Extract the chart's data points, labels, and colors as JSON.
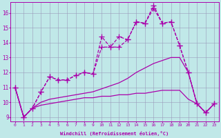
{
  "background_color": "#c0e8e8",
  "grid_color": "#9999bb",
  "line_color": "#aa00aa",
  "markersize": 2.5,
  "linewidth": 0.9,
  "xlabel": "Windchill (Refroidissement éolien,°C)",
  "xlim": [
    -0.5,
    23.5
  ],
  "ylim": [
    8.7,
    16.7
  ],
  "yticks": [
    9,
    10,
    11,
    12,
    13,
    14,
    15,
    16
  ],
  "xticks": [
    0,
    1,
    2,
    3,
    4,
    5,
    6,
    7,
    8,
    9,
    10,
    11,
    12,
    13,
    14,
    15,
    16,
    17,
    18,
    19,
    20,
    21,
    22,
    23
  ],
  "series1_x": [
    0,
    1,
    2,
    3,
    4,
    5,
    6,
    7,
    8,
    9,
    10,
    11,
    12,
    13,
    14,
    15,
    16,
    17,
    18,
    19,
    20,
    21,
    22,
    23
  ],
  "series1_y": [
    11.0,
    9.0,
    9.6,
    10.7,
    11.7,
    11.5,
    11.5,
    11.8,
    12.0,
    11.9,
    14.4,
    13.7,
    14.4,
    14.2,
    15.4,
    15.3,
    16.5,
    15.3,
    15.4,
    13.8,
    12.0,
    9.9,
    9.3,
    9.9
  ],
  "series2_x": [
    0,
    1,
    2,
    3,
    4,
    5,
    6,
    7,
    8,
    9,
    10,
    11,
    12,
    13,
    14,
    15,
    16,
    17,
    18,
    19,
    20,
    21,
    22,
    23
  ],
  "series2_y": [
    11.0,
    9.0,
    9.6,
    10.7,
    11.7,
    11.5,
    11.5,
    11.8,
    12.0,
    11.9,
    13.7,
    13.7,
    13.7,
    14.2,
    15.4,
    15.3,
    16.3,
    15.3,
    15.4,
    13.8,
    12.0,
    9.9,
    9.3,
    9.9
  ],
  "series3_x": [
    0,
    1,
    2,
    3,
    4,
    5,
    6,
    7,
    8,
    9,
    10,
    11,
    12,
    13,
    14,
    15,
    16,
    17,
    18,
    19,
    20,
    21,
    22,
    23
  ],
  "series3_y": [
    11.0,
    9.0,
    9.6,
    10.0,
    10.2,
    10.3,
    10.4,
    10.5,
    10.6,
    10.7,
    10.9,
    11.1,
    11.3,
    11.6,
    12.0,
    12.3,
    12.6,
    12.8,
    13.0,
    13.0,
    12.0,
    9.9,
    9.3,
    9.9
  ],
  "series4_x": [
    0,
    1,
    2,
    3,
    4,
    5,
    6,
    7,
    8,
    9,
    10,
    11,
    12,
    13,
    14,
    15,
    16,
    17,
    18,
    19,
    20,
    21,
    22,
    23
  ],
  "series4_y": [
    11.0,
    9.0,
    9.6,
    9.8,
    9.9,
    10.0,
    10.1,
    10.2,
    10.3,
    10.3,
    10.4,
    10.4,
    10.5,
    10.5,
    10.6,
    10.6,
    10.7,
    10.8,
    10.8,
    10.8,
    10.2,
    9.9,
    9.3,
    9.9
  ]
}
